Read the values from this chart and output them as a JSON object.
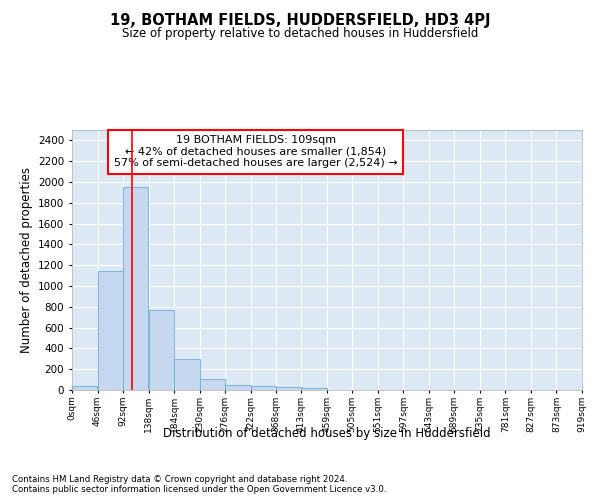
{
  "title": "19, BOTHAM FIELDS, HUDDERSFIELD, HD3 4PJ",
  "subtitle": "Size of property relative to detached houses in Huddersfield",
  "xlabel": "Distribution of detached houses by size in Huddersfield",
  "ylabel": "Number of detached properties",
  "bar_color": "#c5d8ef",
  "bar_edge_color": "#6baed6",
  "fig_background_color": "#ffffff",
  "axes_background_color": "#dce9f5",
  "grid_color": "#ffffff",
  "red_line_x": 109,
  "annotation_text": "19 BOTHAM FIELDS: 109sqm\n← 42% of detached houses are smaller (1,854)\n57% of semi-detached houses are larger (2,524) →",
  "bin_edges": [
    0,
    46,
    92,
    138,
    184,
    230,
    276,
    322,
    368,
    413,
    459,
    505,
    551,
    597,
    643,
    689,
    735,
    781,
    827,
    873,
    919
  ],
  "bin_labels": [
    "0sqm",
    "46sqm",
    "92sqm",
    "138sqm",
    "184sqm",
    "230sqm",
    "276sqm",
    "322sqm",
    "368sqm",
    "413sqm",
    "459sqm",
    "505sqm",
    "551sqm",
    "597sqm",
    "643sqm",
    "689sqm",
    "735sqm",
    "781sqm",
    "827sqm",
    "873sqm",
    "919sqm"
  ],
  "bar_heights": [
    35,
    1140,
    1950,
    770,
    300,
    105,
    48,
    38,
    25,
    15,
    0,
    0,
    0,
    0,
    0,
    0,
    0,
    0,
    0,
    0
  ],
  "ylim": [
    0,
    2500
  ],
  "yticks": [
    0,
    200,
    400,
    600,
    800,
    1000,
    1200,
    1400,
    1600,
    1800,
    2000,
    2200,
    2400
  ],
  "footnote1": "Contains HM Land Registry data © Crown copyright and database right 2024.",
  "footnote2": "Contains public sector information licensed under the Open Government Licence v3.0."
}
